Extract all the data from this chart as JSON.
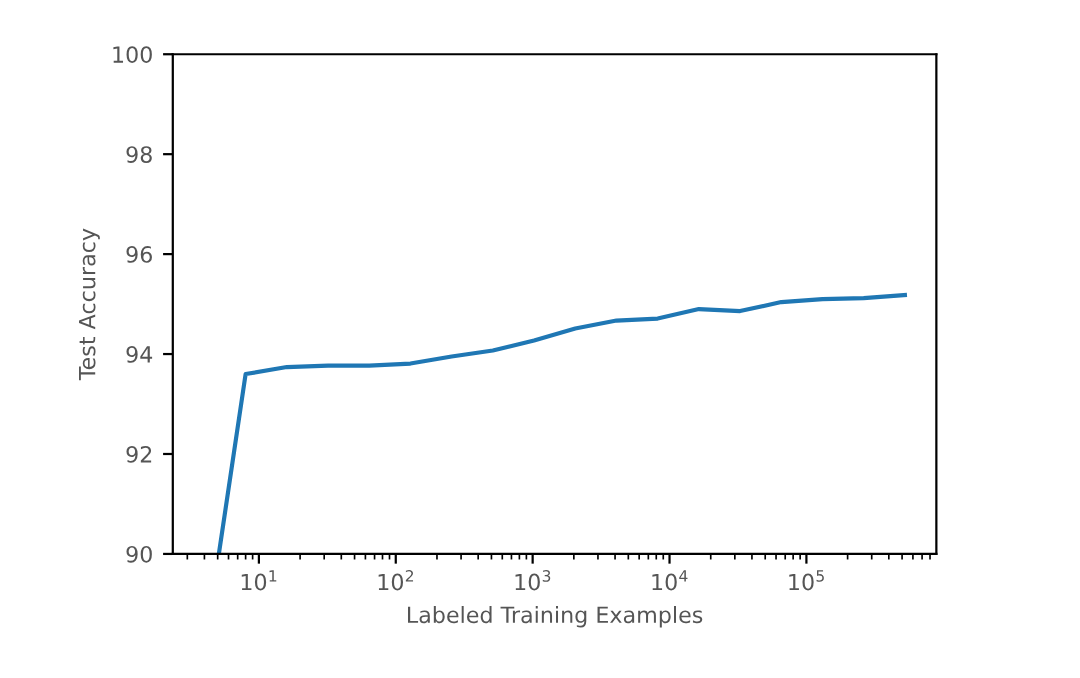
{
  "chart_data": {
    "type": "line",
    "xlabel": "Labeled Training Examples",
    "ylabel": "Test Accuracy",
    "log": "x",
    "x": [
      5.1,
      8,
      16,
      32,
      64,
      128,
      256,
      512,
      1024,
      2048,
      4096,
      8192,
      16384,
      32768,
      65536,
      131072,
      262144,
      524288
    ],
    "series": [
      {
        "color": "#1f77b4",
        "values": [
          90,
          93.6,
          93.74,
          93.77,
          93.77,
          93.81,
          93.95,
          94.07,
          94.27,
          94.51,
          94.67,
          94.71,
          94.9,
          94.86,
          95.04,
          95.1,
          95.12,
          95.18
        ]
      }
    ],
    "xlim": [
      2.35,
      890000
    ],
    "ylim": [
      90,
      100
    ],
    "xticks": [
      {
        "value": 10,
        "label": "10$^{1}$"
      },
      {
        "value": 100,
        "label": "10$^{2}$"
      },
      {
        "value": 1000,
        "label": "10$^{3}$"
      },
      {
        "value": 10000,
        "label": "10$^{4}$"
      },
      {
        "value": 100000,
        "label": "10$^{5}$"
      }
    ],
    "yticks": [
      90,
      92,
      94,
      96,
      98,
      100
    ],
    "marker": "none",
    "line_style": "solid"
  }
}
